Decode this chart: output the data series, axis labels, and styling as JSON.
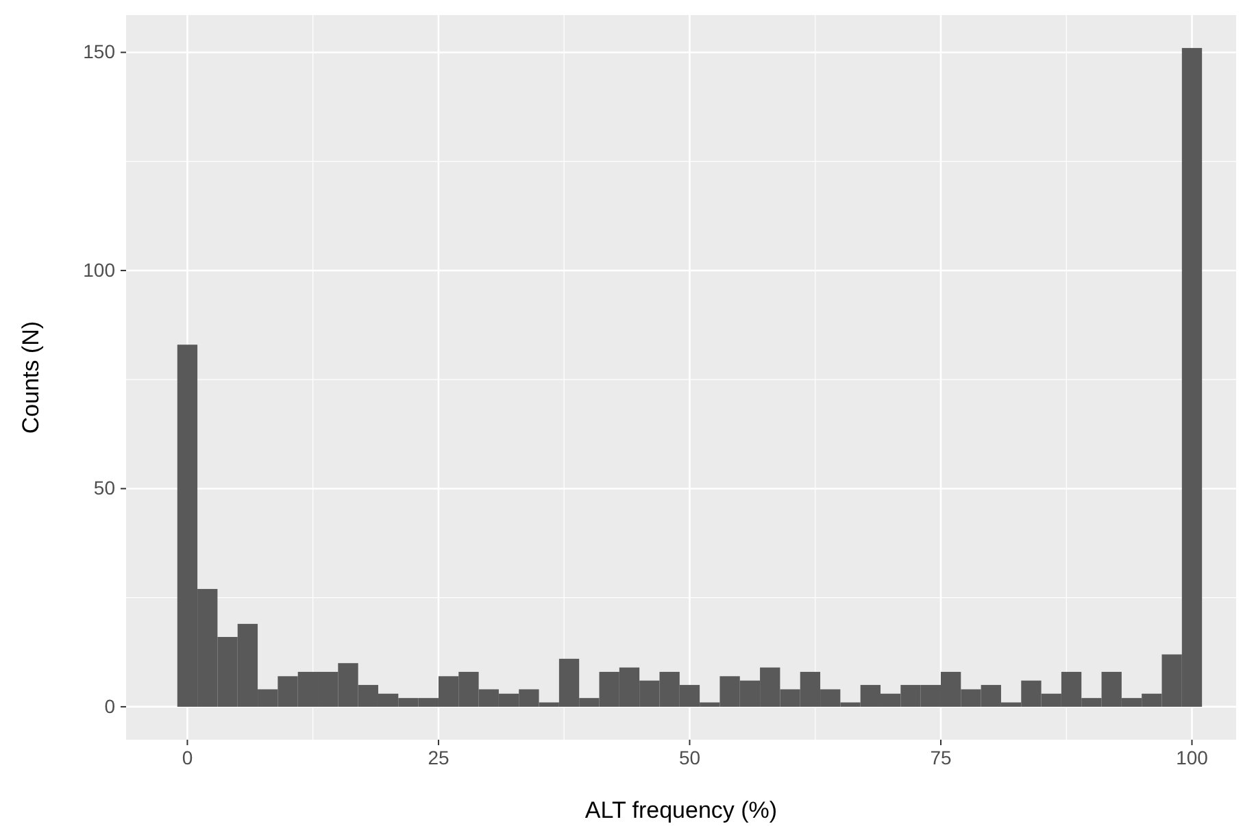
{
  "chart_data": {
    "type": "histogram",
    "xlabel": "ALT frequency (%)",
    "ylabel": "Counts (N)",
    "bins": [
      -1,
      1,
      3,
      5,
      7,
      9,
      11,
      13,
      15,
      17,
      19,
      21,
      23,
      25,
      27,
      29,
      31,
      33,
      35,
      37,
      39,
      41,
      43,
      45,
      47,
      49,
      51,
      53,
      55,
      57,
      59,
      61,
      63,
      65,
      67,
      69,
      71,
      73,
      75,
      77,
      79,
      81,
      83,
      85,
      87,
      89,
      91,
      93,
      95,
      97,
      99,
      101
    ],
    "values": [
      83,
      27,
      16,
      19,
      4,
      7,
      8,
      8,
      10,
      5,
      3,
      2,
      2,
      7,
      8,
      4,
      3,
      4,
      1,
      11,
      2,
      8,
      9,
      6,
      8,
      5,
      1,
      7,
      6,
      9,
      4,
      8,
      4,
      1,
      5,
      3,
      5,
      5,
      8,
      4,
      5,
      1,
      6,
      3,
      8,
      2,
      8,
      2,
      3,
      12,
      151
    ],
    "color": "#595959",
    "xlim": [
      -6.1,
      104.4
    ],
    "xticks": [
      0,
      25,
      50,
      75,
      100
    ],
    "ylim": [
      -7.55,
      158.55
    ],
    "yticks": [
      0,
      50,
      100,
      150
    ],
    "grid": true
  }
}
